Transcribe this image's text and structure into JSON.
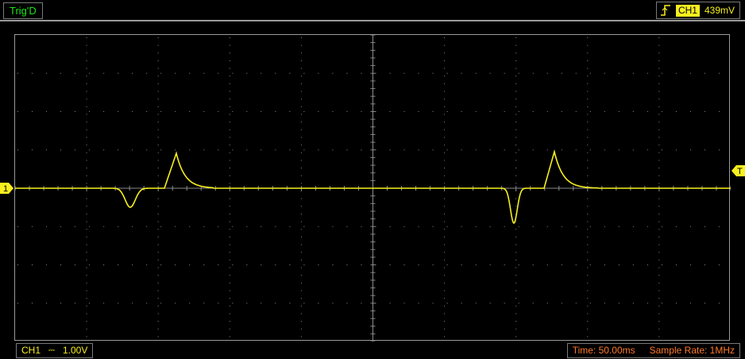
{
  "status": {
    "trigger_state": "Trig'D"
  },
  "trigger": {
    "edge_icon": "rising-edge-icon",
    "source": "CH1",
    "level": "439mV",
    "marker_label": "T"
  },
  "channel": {
    "marker_label": "1",
    "name": "CH1",
    "coupling_icon": "dc-coupling-icon",
    "coupling_glyph": "⎓",
    "volts_per_div": "1.00V",
    "color": "#f7ef1e"
  },
  "timebase": {
    "time_label": "Time: 50.00ms",
    "sample_rate_label": "Sample Rate: 1MHz",
    "color": "#ff7a2a"
  },
  "colors": {
    "background": "#000000",
    "grid": "#8a8a8a",
    "trigger_status": "#19e619"
  }
}
